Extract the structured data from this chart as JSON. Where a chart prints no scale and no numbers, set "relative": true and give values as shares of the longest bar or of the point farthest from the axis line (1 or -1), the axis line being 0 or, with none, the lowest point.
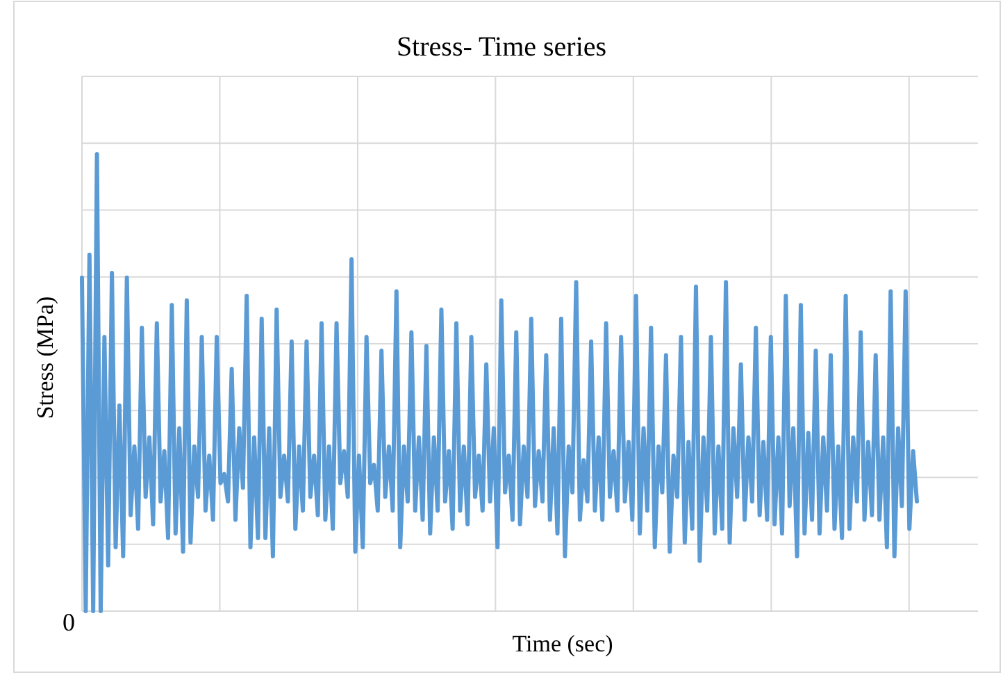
{
  "chart_data": {
    "type": "line",
    "title": "Stress- Time series",
    "xlabel": "Time (sec)",
    "ylabel": "Stress (MPa)",
    "relative": true,
    "grid": true,
    "annotations": [
      "0"
    ],
    "categories": [
      null,
      null,
      null,
      null,
      null,
      null,
      null,
      null,
      null,
      null,
      null,
      null,
      null,
      null,
      null,
      null,
      null,
      null,
      null,
      null,
      null,
      null,
      null,
      null,
      null,
      null,
      null,
      null,
      null,
      null,
      null,
      null,
      null,
      null,
      null,
      null,
      null,
      null,
      null,
      null,
      null,
      null,
      null,
      null,
      null,
      null,
      null,
      null,
      null,
      null,
      null,
      null,
      null,
      null,
      null,
      null,
      null,
      null,
      null,
      null,
      null,
      null,
      null,
      null,
      null,
      null,
      null,
      null,
      null,
      null,
      null,
      null,
      null,
      null,
      null,
      null,
      null,
      null,
      null,
      null,
      null,
      null,
      null,
      null,
      null,
      null,
      null,
      null,
      null,
      null,
      null,
      null,
      null,
      null,
      null,
      null,
      null,
      null,
      null,
      null,
      null,
      null,
      null,
      null,
      null,
      null,
      null,
      null,
      null,
      null,
      null,
      null,
      null,
      null,
      null,
      null,
      null,
      null,
      null,
      null,
      null,
      null,
      null,
      null,
      null,
      null,
      null,
      null,
      null,
      null,
      null,
      null,
      null,
      null,
      null,
      null,
      null,
      null,
      null,
      null,
      null,
      null,
      null,
      null,
      null,
      null,
      null,
      null,
      null,
      null,
      null,
      null,
      null,
      null,
      null,
      null,
      null,
      null,
      null,
      null,
      null,
      null,
      null,
      null,
      null,
      null,
      null,
      null,
      null,
      null,
      null,
      null,
      null,
      null,
      null,
      null,
      null,
      null,
      null,
      null,
      null,
      null,
      null,
      null,
      null,
      null,
      null,
      null,
      null,
      null,
      null,
      null,
      null,
      null,
      null,
      null,
      null,
      null,
      null,
      null,
      null,
      null,
      null,
      null,
      null,
      null,
      null,
      null,
      null,
      null,
      null,
      null,
      null,
      null,
      null,
      null,
      null,
      null,
      null,
      null,
      null,
      null,
      null,
      null
    ],
    "series": [
      {
        "color": "#5b9bd5",
        "values": [
          0.73,
          0.0,
          0.78,
          0.0,
          1.0,
          0.0,
          0.6,
          0.1,
          0.74,
          0.14,
          0.45,
          0.12,
          0.73,
          0.21,
          0.36,
          0.18,
          0.62,
          0.25,
          0.38,
          0.19,
          0.63,
          0.24,
          0.35,
          0.16,
          0.67,
          0.17,
          0.4,
          0.13,
          0.68,
          0.15,
          0.36,
          0.25,
          0.6,
          0.22,
          0.34,
          0.2,
          0.6,
          0.28,
          0.3,
          0.24,
          0.53,
          0.2,
          0.4,
          0.27,
          0.69,
          0.14,
          0.38,
          0.16,
          0.64,
          0.16,
          0.4,
          0.12,
          0.66,
          0.25,
          0.34,
          0.24,
          0.59,
          0.18,
          0.36,
          0.22,
          0.59,
          0.25,
          0.34,
          0.21,
          0.63,
          0.2,
          0.36,
          0.18,
          0.63,
          0.28,
          0.35,
          0.25,
          0.77,
          0.13,
          0.34,
          0.14,
          0.6,
          0.28,
          0.32,
          0.22,
          0.57,
          0.25,
          0.36,
          0.22,
          0.7,
          0.14,
          0.36,
          0.24,
          0.61,
          0.22,
          0.38,
          0.2,
          0.58,
          0.17,
          0.38,
          0.22,
          0.66,
          0.24,
          0.35,
          0.18,
          0.63,
          0.22,
          0.36,
          0.19,
          0.6,
          0.25,
          0.34,
          0.22,
          0.54,
          0.24,
          0.4,
          0.14,
          0.68,
          0.26,
          0.34,
          0.2,
          0.61,
          0.19,
          0.36,
          0.25,
          0.64,
          0.23,
          0.35,
          0.24,
          0.56,
          0.2,
          0.4,
          0.17,
          0.64,
          0.12,
          0.36,
          0.26,
          0.72,
          0.2,
          0.33,
          0.24,
          0.59,
          0.22,
          0.38,
          0.2,
          0.63,
          0.25,
          0.35,
          0.22,
          0.6,
          0.24,
          0.37,
          0.2,
          0.69,
          0.17,
          0.4,
          0.22,
          0.62,
          0.14,
          0.36,
          0.26,
          0.56,
          0.13,
          0.34,
          0.25,
          0.6,
          0.15,
          0.37,
          0.18,
          0.71,
          0.11,
          0.38,
          0.22,
          0.6,
          0.17,
          0.36,
          0.18,
          0.72,
          0.15,
          0.4,
          0.25,
          0.54,
          0.2,
          0.38,
          0.24,
          0.62,
          0.21,
          0.37,
          0.2,
          0.6,
          0.19,
          0.38,
          0.17,
          0.69,
          0.23,
          0.4,
          0.12,
          0.67,
          0.17,
          0.39,
          0.2,
          0.57,
          0.17,
          0.38,
          0.22,
          0.56,
          0.18,
          0.36,
          0.16,
          0.69,
          0.18,
          0.38,
          0.24,
          0.61,
          0.2,
          0.37,
          0.21,
          0.56,
          0.2,
          0.38,
          0.14,
          0.7,
          0.12,
          0.4,
          0.23,
          0.7,
          0.18,
          0.35,
          0.24
        ]
      }
    ]
  }
}
